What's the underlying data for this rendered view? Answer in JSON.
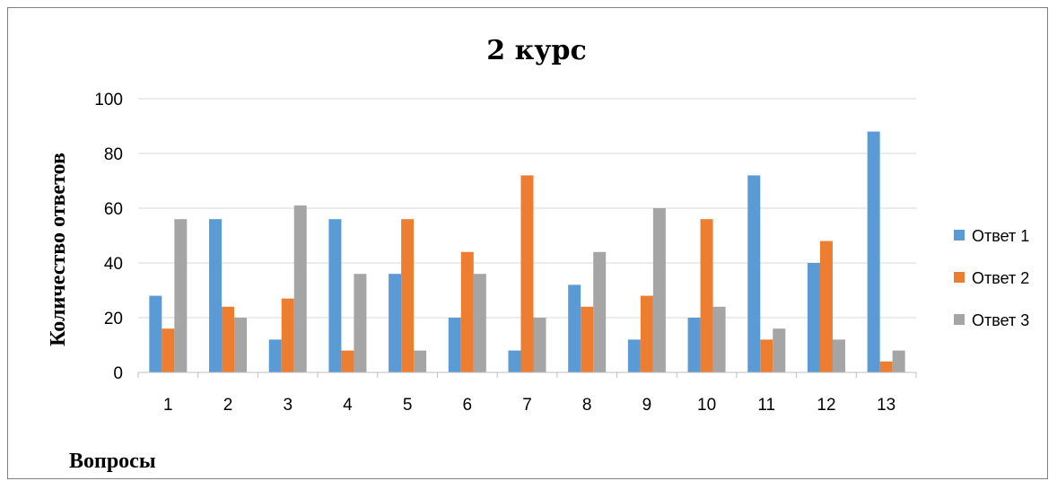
{
  "chart_data": {
    "type": "bar",
    "title": "2 курс",
    "xlabel": "Вопросы",
    "ylabel": "Количество ответов",
    "categories": [
      "1",
      "2",
      "3",
      "4",
      "5",
      "6",
      "7",
      "8",
      "9",
      "10",
      "11",
      "12",
      "13"
    ],
    "series": [
      {
        "name": "Ответ 1",
        "color": "#5B9BD5",
        "values": [
          28,
          56,
          12,
          56,
          36,
          20,
          8,
          32,
          12,
          20,
          72,
          40,
          88
        ]
      },
      {
        "name": "Ответ 2",
        "color": "#ED7D31",
        "values": [
          16,
          24,
          27,
          8,
          56,
          44,
          72,
          24,
          28,
          56,
          12,
          48,
          4
        ]
      },
      {
        "name": "Ответ 3",
        "color": "#A5A5A5",
        "values": [
          56,
          20,
          61,
          36,
          8,
          36,
          20,
          44,
          60,
          24,
          16,
          12,
          8
        ]
      }
    ],
    "ylim": [
      0,
      100
    ],
    "yticks": [
      0,
      20,
      40,
      60,
      80,
      100
    ],
    "grid": true,
    "legend": "right"
  }
}
